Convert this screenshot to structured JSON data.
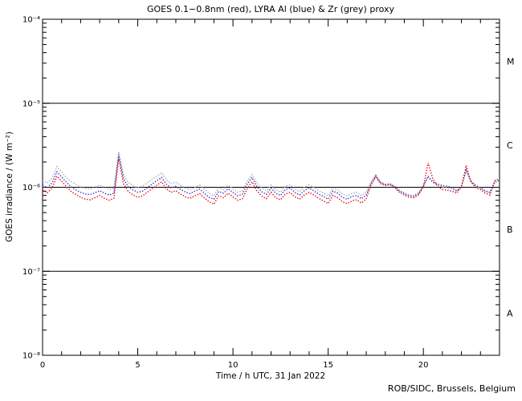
{
  "title": "GOES 0.1−0.8nm (red), LYRA Al (blue) & Zr (grey) proxy",
  "footer": "ROB/SIDC, Brussels, Belgium",
  "chart_data": {
    "type": "line",
    "title": "GOES 0.1−0.8nm (red), LYRA Al (blue) & Zr (grey) proxy",
    "xlabel": "Time / h UTC, 31 Jan 2022",
    "ylabel": "GOES irradiance / (W m⁻²)",
    "x_unit": "hours",
    "x_range": [
      0,
      24
    ],
    "x_major_ticks": [
      0,
      5,
      10,
      15,
      20
    ],
    "x_major_tick_labels": [
      "0",
      "5",
      "10",
      "15",
      "20"
    ],
    "x_minor_step": 1,
    "y_scale": "log",
    "y_range": [
      1e-08,
      0.0001
    ],
    "y_tick_exponents": [
      -4,
      -5,
      -6,
      -7,
      -8
    ],
    "y_tick_labels": [
      "10⁻⁴",
      "10⁻⁵",
      "10⁻⁶",
      "10⁻⁷",
      "10⁻⁸"
    ],
    "hlines": [
      1e-05,
      1e-06,
      1e-07
    ],
    "flare_classes": [
      {
        "label": "M",
        "between": [
          1e-05,
          0.0001
        ]
      },
      {
        "label": "C",
        "between": [
          1e-06,
          1e-05
        ]
      },
      {
        "label": "B",
        "between": [
          1e-07,
          1e-06
        ]
      },
      {
        "label": "A",
        "between": [
          1e-08,
          1e-07
        ]
      }
    ],
    "grid": false,
    "legend_position": "in-title",
    "line_style": "dotted",
    "sample_step_hours": 0.25,
    "value_unit": 1e-07,
    "series": [
      {
        "name": "LYRA Zr proxy",
        "color": "#a8a8a8",
        "values": [
          12.1,
          11.3,
          12.9,
          17.6,
          15.2,
          13.1,
          11.7,
          10.8,
          10.1,
          9.7,
          9.5,
          10.0,
          10.6,
          10.0,
          9.4,
          9.7,
          26.5,
          14.1,
          11.4,
          10.5,
          9.9,
          10.3,
          11.3,
          12.4,
          13.6,
          14.9,
          12.3,
          11.1,
          11.5,
          10.5,
          9.8,
          9.4,
          10.0,
          10.6,
          9.5,
          8.5,
          7.9,
          9.9,
          9.4,
          10.6,
          9.6,
          8.7,
          9.1,
          11.9,
          14.1,
          11.3,
          9.8,
          9.1,
          10.6,
          9.3,
          8.8,
          10.3,
          10.7,
          9.5,
          8.9,
          10.0,
          10.7,
          10.0,
          9.1,
          8.5,
          7.9,
          9.8,
          9.3,
          8.3,
          7.9,
          8.5,
          8.7,
          8.0,
          8.8,
          11.6,
          14.1,
          11.7,
          10.9,
          11.1,
          10.3,
          9.2,
          8.6,
          8.1,
          8.0,
          8.6,
          10.6,
          13.1,
          11.3,
          10.6,
          10.1,
          9.9,
          9.6,
          8.9,
          10.1,
          15.6,
          11.6,
          10.3,
          9.7,
          8.9,
          8.5,
          11.3,
          11.9
        ]
      },
      {
        "name": "LYRA Al proxy",
        "color": "#3333cc",
        "values": [
          10.6,
          9.9,
          11.3,
          15.3,
          13.3,
          11.5,
          10.1,
          9.3,
          8.7,
          8.3,
          8.2,
          8.6,
          9.1,
          8.5,
          8.1,
          8.5,
          24.5,
          12.6,
          10.1,
          9.3,
          8.7,
          9.0,
          9.9,
          10.9,
          12.0,
          13.1,
          10.9,
          9.9,
          10.3,
          9.4,
          8.8,
          8.4,
          9.0,
          9.5,
          8.5,
          7.6,
          7.2,
          8.9,
          8.5,
          9.6,
          8.7,
          7.9,
          8.3,
          10.9,
          13.1,
          10.3,
          8.9,
          8.2,
          9.8,
          8.5,
          8.0,
          9.4,
          9.8,
          8.7,
          8.1,
          9.1,
          9.8,
          9.1,
          8.3,
          7.8,
          7.2,
          9.0,
          8.5,
          7.6,
          7.2,
          7.8,
          8.0,
          7.3,
          8.1,
          11.1,
          13.7,
          11.4,
          10.7,
          10.9,
          10.1,
          9.0,
          8.4,
          7.9,
          7.8,
          8.4,
          10.3,
          13.6,
          11.6,
          10.9,
          10.5,
          10.3,
          9.9,
          9.1,
          10.3,
          16.1,
          11.9,
          10.5,
          9.9,
          9.1,
          8.7,
          11.6,
          12.1
        ]
      },
      {
        "name": "GOES 0.1-0.8nm",
        "color": "#ee0000",
        "values": [
          9.3,
          8.6,
          9.8,
          13.5,
          11.8,
          10.2,
          8.9,
          8.2,
          7.6,
          7.2,
          7.1,
          7.5,
          8.0,
          7.4,
          7.0,
          7.4,
          22.0,
          11.0,
          8.9,
          8.1,
          7.6,
          7.9,
          8.7,
          9.6,
          10.6,
          11.6,
          9.6,
          8.7,
          9.1,
          8.3,
          7.7,
          7.4,
          7.9,
          8.4,
          7.5,
          6.7,
          6.3,
          7.9,
          7.5,
          8.5,
          7.7,
          7.0,
          7.3,
          9.6,
          11.6,
          9.1,
          7.9,
          7.3,
          8.7,
          7.5,
          7.1,
          8.3,
          8.7,
          7.7,
          7.2,
          8.1,
          8.7,
          8.1,
          7.4,
          6.9,
          6.4,
          8.0,
          7.5,
          6.7,
          6.4,
          6.9,
          7.1,
          6.5,
          7.3,
          10.6,
          13.2,
          11.1,
          10.5,
          10.7,
          9.9,
          8.7,
          8.1,
          7.6,
          7.5,
          8.1,
          10.1,
          19.6,
          12.6,
          10.2,
          9.4,
          9.2,
          9.0,
          8.5,
          10.1,
          18.2,
          11.6,
          9.9,
          9.4,
          8.5,
          8.1,
          12.1,
          12.6
        ]
      }
    ]
  }
}
